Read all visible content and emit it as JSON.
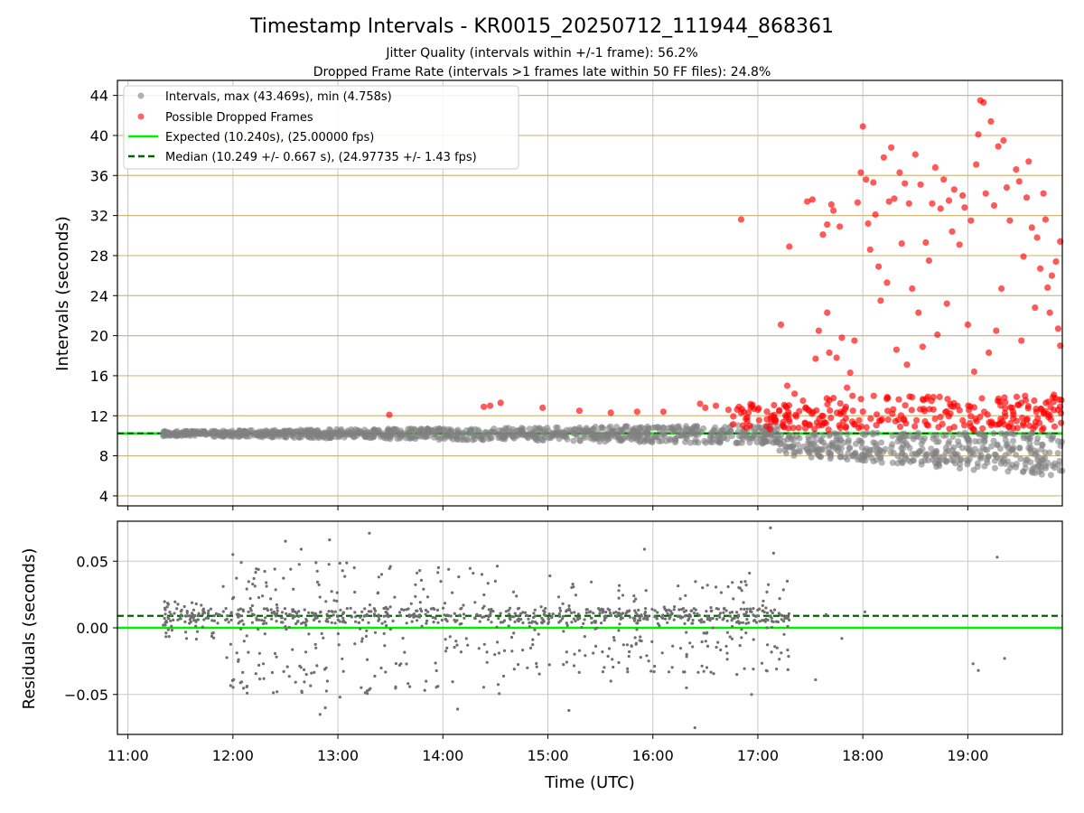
{
  "chart_data": [
    {
      "type": "scatter",
      "title": "Timestamp Intervals - KR0015_20250712_111944_868361",
      "subtitle_1": "Jitter Quality (intervals within +/-1 frame): 56.2%",
      "subtitle_2": "Dropped Frame Rate (intervals >1 frames late within 50 FF files): 24.8%",
      "ylabel": "Intervals (seconds)",
      "ylim": [
        3.0,
        45.5
      ],
      "yticks": [
        "4",
        "8",
        "12",
        "16",
        "20",
        "24",
        "28",
        "32",
        "36",
        "40",
        "44"
      ],
      "xlim_hours": [
        10.9,
        19.9
      ],
      "grid": true,
      "legend_position": "top-left",
      "legend": [
        "Intervals, max (43.469s), min (4.758s)",
        "Possible Dropped Frames",
        "Expected (10.240s), (25.00000 fps)",
        "Median (10.249 +/- 0.667 s), (24.97735 +/- 1.43 fps)"
      ],
      "expected_interval": 10.24,
      "median_interval": 10.249,
      "colors": {
        "intervals": "#808080",
        "dropped": "#ff0000",
        "expected": "#00ee00",
        "median": "#006400",
        "hgrid": "#d2b97a",
        "vgrid": "#c8c8c8"
      },
      "series": [
        {
          "name": "Possible Dropped Frames",
          "points": [
            [
              13.49,
              12.1
            ],
            [
              14.39,
              12.9
            ],
            [
              14.45,
              13.0
            ],
            [
              14.55,
              13.3
            ],
            [
              14.95,
              12.8
            ],
            [
              15.3,
              12.5
            ],
            [
              15.6,
              12.3
            ],
            [
              15.85,
              12.4
            ],
            [
              16.1,
              12.4
            ],
            [
              16.45,
              13.2
            ],
            [
              16.5,
              12.8
            ],
            [
              16.6,
              13.0
            ],
            [
              16.72,
              12.6
            ],
            [
              16.82,
              12.9
            ],
            [
              16.84,
              31.6
            ],
            [
              16.95,
              13.1
            ],
            [
              17.0,
              12.6
            ],
            [
              17.22,
              21.1
            ],
            [
              17.3,
              28.9
            ],
            [
              17.28,
              15.0
            ],
            [
              17.35,
              14.2
            ],
            [
              17.43,
              13.5
            ],
            [
              17.47,
              33.4
            ],
            [
              17.52,
              33.6
            ],
            [
              17.55,
              17.7
            ],
            [
              17.58,
              20.5
            ],
            [
              17.62,
              30.1
            ],
            [
              17.66,
              31.1
            ],
            [
              17.66,
              22.3
            ],
            [
              17.68,
              18.3
            ],
            [
              17.7,
              33.1
            ],
            [
              17.72,
              32.5
            ],
            [
              17.75,
              17.8
            ],
            [
              17.78,
              30.9
            ],
            [
              17.8,
              19.8
            ],
            [
              17.85,
              14.8
            ],
            [
              17.88,
              16.3
            ],
            [
              17.92,
              19.5
            ],
            [
              17.95,
              33.3
            ],
            [
              17.98,
              36.3
            ],
            [
              18.0,
              40.9
            ],
            [
              18.03,
              35.6
            ],
            [
              18.05,
              31.2
            ],
            [
              18.07,
              28.6
            ],
            [
              18.1,
              35.3
            ],
            [
              18.12,
              32.1
            ],
            [
              18.15,
              26.9
            ],
            [
              18.17,
              23.5
            ],
            [
              18.2,
              37.8
            ],
            [
              18.23,
              25.3
            ],
            [
              18.25,
              33.4
            ],
            [
              18.27,
              38.8
            ],
            [
              18.3,
              33.7
            ],
            [
              18.32,
              18.6
            ],
            [
              18.35,
              36.3
            ],
            [
              18.37,
              29.2
            ],
            [
              18.4,
              35.2
            ],
            [
              18.42,
              17.1
            ],
            [
              18.44,
              33.2
            ],
            [
              18.47,
              24.7
            ],
            [
              18.5,
              38.1
            ],
            [
              18.53,
              22.3
            ],
            [
              18.55,
              35.1
            ],
            [
              18.57,
              18.9
            ],
            [
              18.6,
              29.3
            ],
            [
              18.63,
              27.5
            ],
            [
              18.66,
              33.2
            ],
            [
              18.69,
              36.8
            ],
            [
              18.71,
              20.1
            ],
            [
              18.74,
              32.7
            ],
            [
              18.77,
              35.6
            ],
            [
              18.8,
              23.2
            ],
            [
              18.82,
              33.5
            ],
            [
              18.85,
              30.4
            ],
            [
              18.87,
              34.6
            ],
            [
              18.9,
              13.0
            ],
            [
              18.92,
              29.1
            ],
            [
              18.95,
              34.0
            ],
            [
              18.97,
              32.8
            ],
            [
              19.0,
              21.1
            ],
            [
              19.03,
              31.5
            ],
            [
              19.06,
              16.4
            ],
            [
              19.08,
              37.1
            ],
            [
              19.1,
              40.1
            ],
            [
              19.12,
              43.5
            ],
            [
              19.15,
              43.3
            ],
            [
              19.17,
              34.2
            ],
            [
              19.2,
              18.3
            ],
            [
              19.22,
              41.4
            ],
            [
              19.25,
              33.0
            ],
            [
              19.27,
              20.5
            ],
            [
              19.29,
              38.9
            ],
            [
              19.32,
              24.7
            ],
            [
              19.34,
              39.5
            ],
            [
              19.37,
              34.8
            ],
            [
              19.4,
              31.5
            ],
            [
              19.43,
              12.4
            ],
            [
              19.46,
              36.6
            ],
            [
              19.49,
              35.4
            ],
            [
              19.51,
              19.5
            ],
            [
              19.53,
              27.9
            ],
            [
              19.56,
              33.8
            ],
            [
              19.58,
              37.4
            ],
            [
              19.61,
              30.8
            ],
            [
              19.64,
              22.8
            ],
            [
              19.66,
              29.8
            ],
            [
              19.69,
              26.7
            ],
            [
              19.72,
              34.2
            ],
            [
              19.74,
              31.6
            ],
            [
              19.76,
              24.8
            ],
            [
              19.78,
              22.3
            ],
            [
              19.8,
              26.0
            ],
            [
              19.82,
              14.1
            ],
            [
              19.84,
              27.4
            ],
            [
              19.86,
              20.7
            ],
            [
              19.88,
              29.4
            ],
            [
              19.88,
              19.0
            ]
          ]
        }
      ]
    },
    {
      "type": "scatter",
      "ylabel": "Residuals (seconds)",
      "xlabel": "Time (UTC)",
      "ylim": [
        -0.08,
        0.08
      ],
      "yticks": [
        "0.05",
        "0.00",
        "−0.05"
      ],
      "xticks": [
        "11:00",
        "12:00",
        "13:00",
        "14:00",
        "15:00",
        "16:00",
        "17:00",
        "18:00",
        "19:00"
      ],
      "residual_expected": 0.0,
      "residual_median": 0.009,
      "series": [
        {
          "name": "Residuals",
          "points": [
            [
              12.0,
              0.055
            ],
            [
              12.08,
              0.049
            ],
            [
              12.2,
              0.037
            ],
            [
              12.29,
              -0.027
            ],
            [
              12.42,
              -0.048
            ],
            [
              12.5,
              0.065
            ],
            [
              12.55,
              0.044
            ],
            [
              12.65,
              0.059
            ],
            [
              12.7,
              -0.035
            ],
            [
              12.83,
              -0.065
            ],
            [
              12.88,
              -0.06
            ],
            [
              12.92,
              0.066
            ],
            [
              13.02,
              -0.052
            ],
            [
              13.3,
              0.071
            ],
            [
              13.38,
              0.026
            ],
            [
              13.5,
              0.046
            ],
            [
              13.6,
              -0.027
            ],
            [
              13.78,
              0.043
            ],
            [
              14.14,
              -0.061
            ],
            [
              14.5,
              0.035
            ],
            [
              14.68,
              -0.031
            ],
            [
              15.02,
              0.039
            ],
            [
              15.2,
              -0.062
            ],
            [
              15.6,
              -0.04
            ],
            [
              15.82,
              0.024
            ],
            [
              15.92,
              0.059
            ],
            [
              16.32,
              -0.045
            ],
            [
              16.4,
              -0.075
            ],
            [
              16.52,
              0.032
            ],
            [
              16.8,
              -0.035
            ],
            [
              16.92,
              0.041
            ],
            [
              16.94,
              -0.05
            ],
            [
              17.12,
              0.075
            ],
            [
              17.15,
              0.056
            ],
            [
              17.28,
              0.035
            ],
            [
              17.55,
              -0.039
            ],
            [
              17.65,
              0.01
            ],
            [
              17.8,
              -0.008
            ],
            [
              18.02,
              0.012
            ],
            [
              19.05,
              -0.027
            ],
            [
              19.1,
              -0.032
            ],
            [
              19.28,
              0.053
            ],
            [
              19.35,
              -0.023
            ]
          ]
        }
      ]
    }
  ]
}
